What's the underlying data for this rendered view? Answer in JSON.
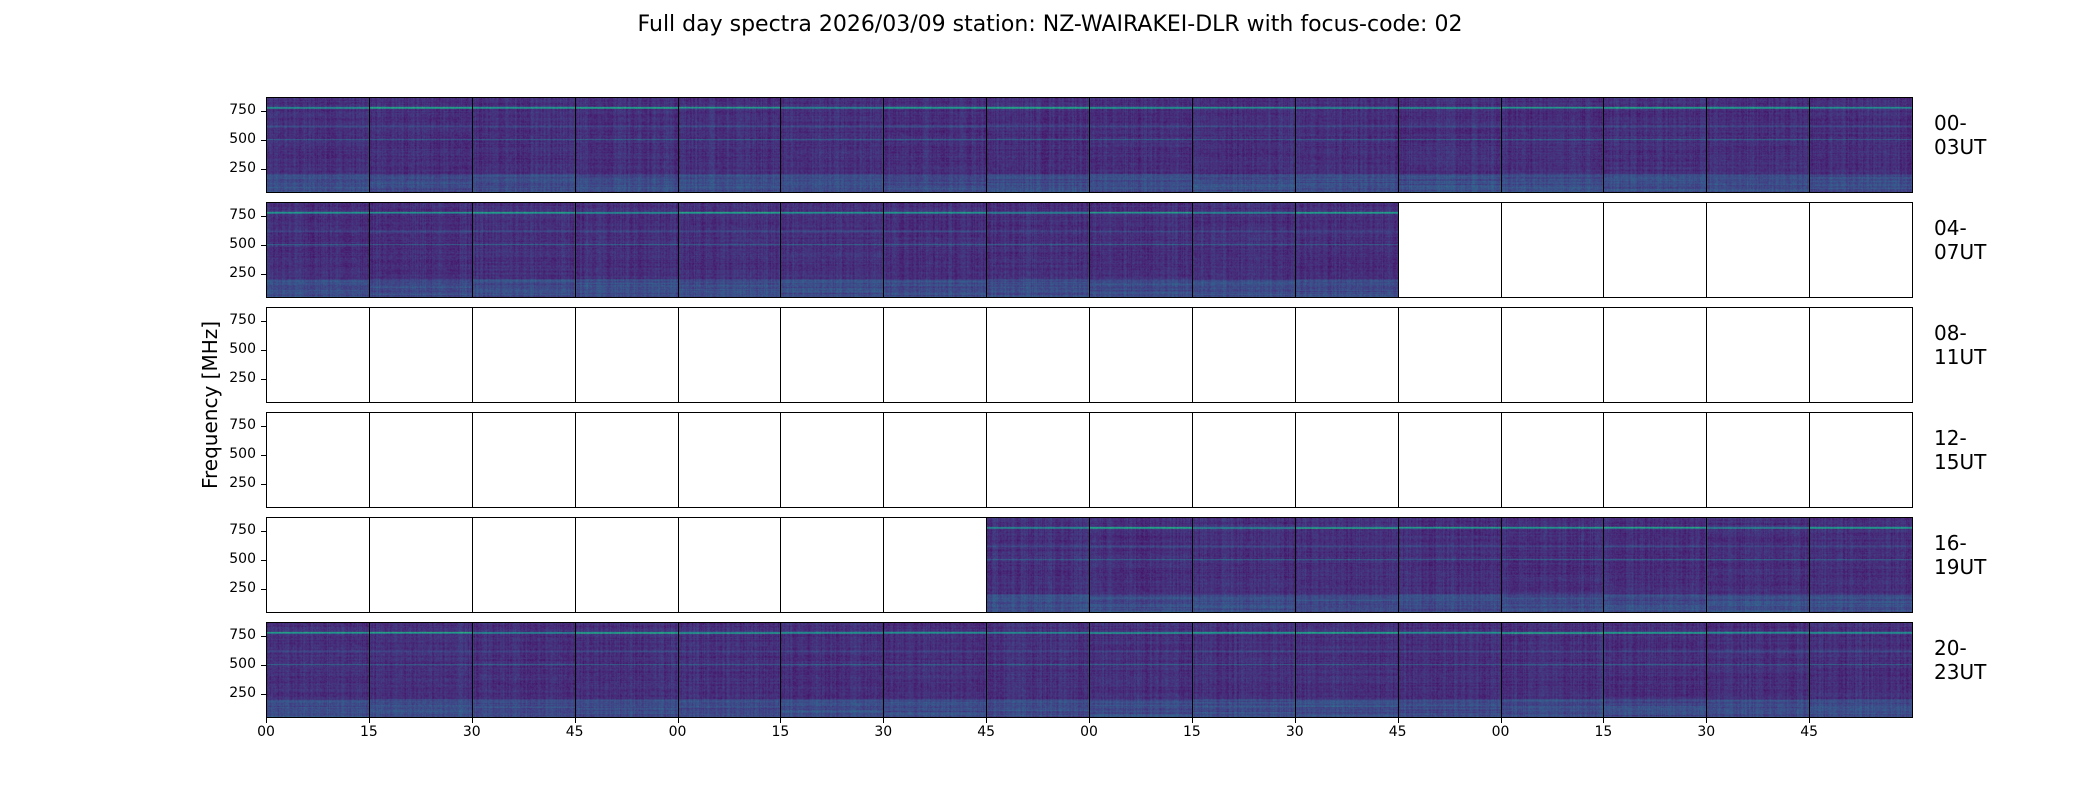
{
  "title": "Full day spectra 2026/03/09 station: NZ-WAIRAKEI-DLR with focus-code: 02",
  "chart_data": {
    "type": "heatmap",
    "title": "Full day spectra 2026/03/09 station: NZ-WAIRAKEI-DLR with focus-code: 02",
    "ylabel": "Frequency [MHz]",
    "xlabel": "",
    "yticks": [
      "250",
      "500",
      "750"
    ],
    "ylim": [
      45,
      870
    ],
    "xticks": [
      "00",
      "15",
      "30",
      "45",
      "00",
      "15",
      "30",
      "45",
      "00",
      "15",
      "30",
      "45",
      "00",
      "15",
      "30",
      "45"
    ],
    "colormap": "viridis",
    "rows": [
      {
        "label": "00-03UT",
        "filled": [
          true,
          true,
          true,
          true,
          true,
          true,
          true,
          true,
          true,
          true,
          true,
          true,
          true,
          true,
          true,
          true
        ]
      },
      {
        "label": "04-07UT",
        "filled": [
          true,
          true,
          true,
          true,
          true,
          true,
          true,
          true,
          true,
          true,
          true,
          false,
          false,
          false,
          false,
          false
        ]
      },
      {
        "label": "08-11UT",
        "filled": [
          false,
          false,
          false,
          false,
          false,
          false,
          false,
          false,
          false,
          false,
          false,
          false,
          false,
          false,
          false,
          false
        ]
      },
      {
        "label": "12-15UT",
        "filled": [
          false,
          false,
          false,
          false,
          false,
          false,
          false,
          false,
          false,
          false,
          false,
          false,
          false,
          false,
          false,
          false
        ]
      },
      {
        "label": "16-19UT",
        "filled": [
          false,
          false,
          false,
          false,
          false,
          false,
          false,
          true,
          true,
          true,
          true,
          true,
          true,
          true,
          true,
          true
        ]
      },
      {
        "label": "20-23UT",
        "filled": [
          true,
          true,
          true,
          true,
          true,
          true,
          true,
          true,
          true,
          true,
          true,
          true,
          true,
          true,
          true,
          true
        ]
      }
    ]
  }
}
